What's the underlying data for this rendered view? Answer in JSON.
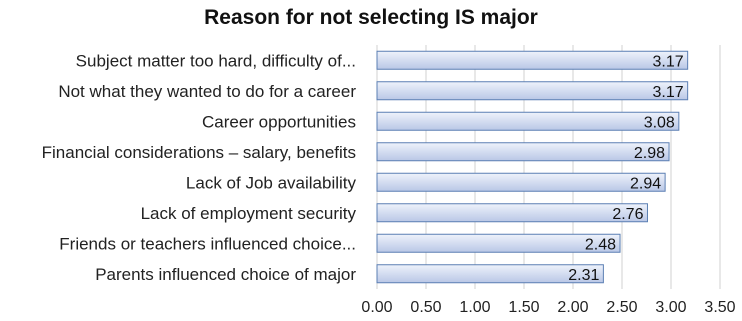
{
  "chart_data": {
    "type": "bar",
    "orientation": "horizontal",
    "title": "Reason for not selecting IS major",
    "categories": [
      "Subject matter too hard, difficulty of...",
      "Not what they wanted to do for a career",
      "Career opportunities",
      "Financial considerations – salary, benefits",
      "Lack of  Job availability",
      "Lack of employment security",
      "Friends or teachers influenced choice...",
      "Parents influenced choice of major"
    ],
    "values": [
      3.17,
      3.17,
      3.08,
      2.98,
      2.94,
      2.76,
      2.48,
      2.31
    ],
    "data_labels": [
      "3.17",
      "3.17",
      "3.08",
      "2.98",
      "2.94",
      "2.76",
      "2.48",
      "2.31"
    ],
    "xlim": [
      0,
      3.5
    ],
    "xticks": [
      "0.00",
      "0.50",
      "1.00",
      "1.50",
      "2.00",
      "2.50",
      "3.00",
      "3.50"
    ],
    "xlabel": "",
    "ylabel": "",
    "grid": "vertical",
    "legend": "none",
    "colors": {
      "bar_top": "#eef2fb",
      "bar_bottom": "#b9c7e6",
      "bar_border": "#5b7fb3",
      "grid": "#d0d0d0"
    }
  }
}
